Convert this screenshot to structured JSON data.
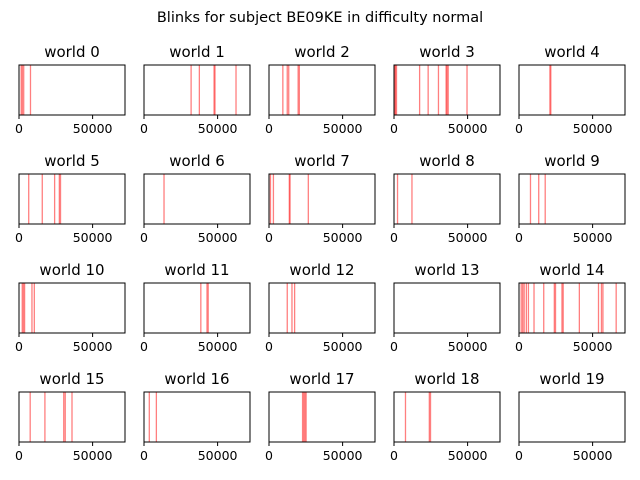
{
  "figure": {
    "title": "Blinks for subject BE09KE in difficulty normal",
    "line_color": "#ff0000",
    "line_opacity": 0.5
  },
  "chart_data": {
    "type": "event-lines",
    "x_range": [
      0,
      72000
    ],
    "x_ticks": [
      0,
      50000
    ],
    "x_tick_labels": [
      "0",
      "50000"
    ],
    "y_ticks": [],
    "grid": false,
    "panels": [
      {
        "title": "world 0",
        "blinks": [
          1500,
          2300,
          3200,
          7800
        ]
      },
      {
        "title": "world 1",
        "blinks": [
          32000,
          37600,
          47600,
          48200,
          62500
        ]
      },
      {
        "title": "world 2",
        "blinks": [
          9400,
          12400,
          13400,
          19800,
          20600
        ]
      },
      {
        "title": "world 3",
        "blinks": [
          500,
          1000,
          1700,
          17400,
          23200,
          30200,
          35400,
          36000,
          36800,
          49600
        ]
      },
      {
        "title": "world 4",
        "blinks": [
          21000,
          21600
        ]
      },
      {
        "title": "world 5",
        "blinks": [
          6600,
          15800,
          24200,
          27400,
          28200
        ]
      },
      {
        "title": "world 6",
        "blinks": [
          13600
        ]
      },
      {
        "title": "world 7",
        "blinks": [
          1000,
          3000,
          13800,
          14300,
          26700
        ]
      },
      {
        "title": "world 8",
        "blinks": [
          2400,
          12200
        ]
      },
      {
        "title": "world 9",
        "blinks": [
          7800,
          13400,
          17800
        ]
      },
      {
        "title": "world 10",
        "blinks": [
          2200,
          3000,
          3800,
          8800,
          10400
        ]
      },
      {
        "title": "world 11",
        "blinks": [
          38600,
          42800,
          43600
        ]
      },
      {
        "title": "world 12",
        "blinks": [
          12400,
          15600,
          17400
        ]
      },
      {
        "title": "world 13",
        "blinks": []
      },
      {
        "title": "world 14",
        "blinks": [
          1500,
          2500,
          3500,
          5000,
          6400,
          10200,
          16800,
          24000,
          24800,
          29200,
          30000,
          41000,
          54000,
          56000,
          57000,
          66000
        ]
      },
      {
        "title": "world 15",
        "blinks": [
          7600,
          17600,
          30400,
          31400,
          36000
        ]
      },
      {
        "title": "world 16",
        "blinks": [
          3600,
          8400
        ]
      },
      {
        "title": "world 17",
        "blinks": [
          22800,
          23600,
          24400,
          25200
        ]
      },
      {
        "title": "world 18",
        "blinks": [
          7800,
          24000,
          24800
        ]
      },
      {
        "title": "world 19",
        "blinks": []
      }
    ]
  }
}
